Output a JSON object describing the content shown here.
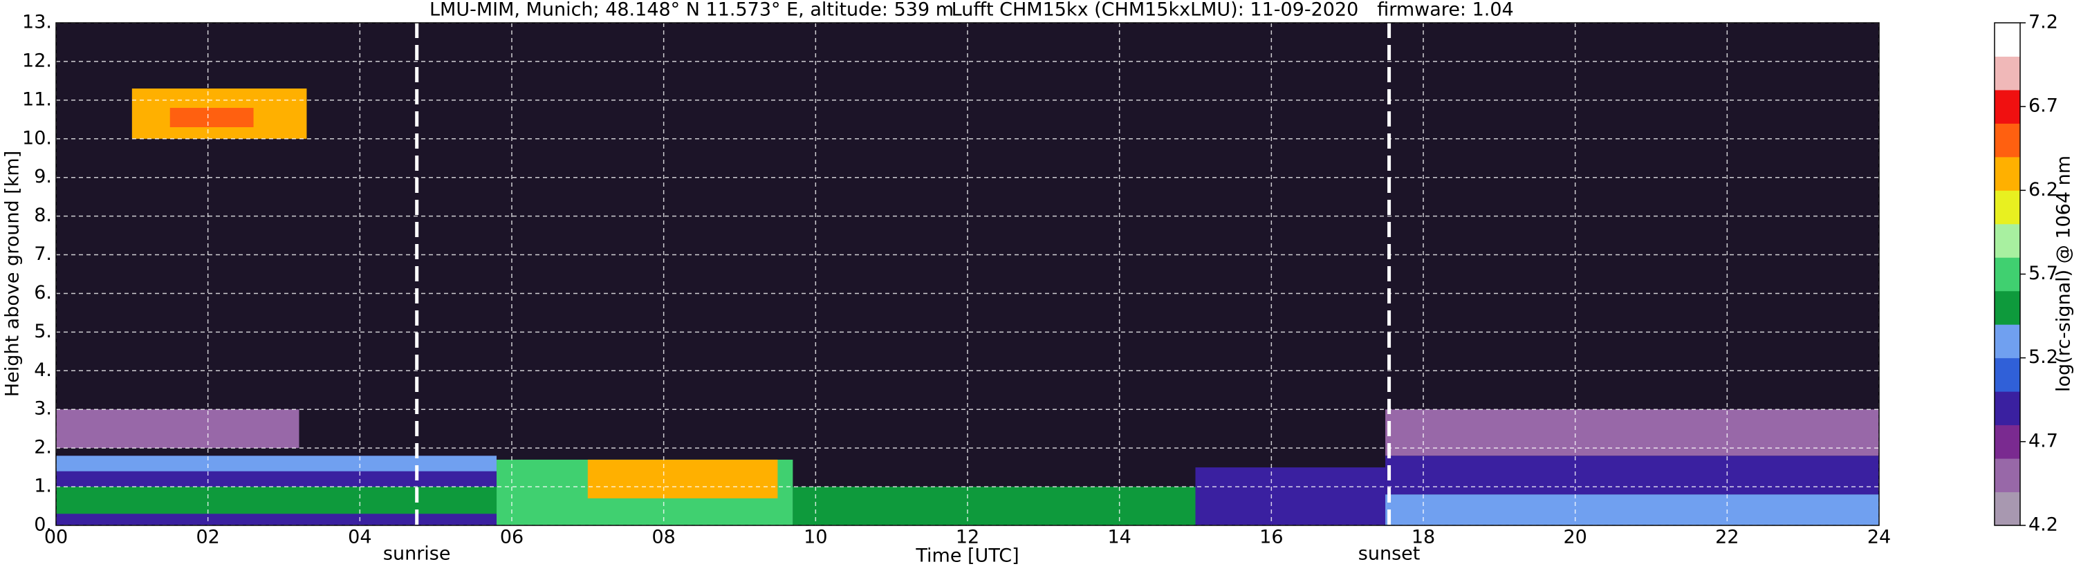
{
  "chart_data": {
    "type": "heatmap",
    "title": [
      "LMU-MIM, Munich; 48.148° N 11.573° E, altitude: 539 m",
      "Lufft CHM15kx (CHM15kxLMU): 11-09-2020",
      "firmware: 1.04"
    ],
    "x_label": "Time [UTC]",
    "y_label": "Height above ground [km]",
    "xlim": [
      0,
      24
    ],
    "xticks": [
      {
        "value": 0,
        "label": "00"
      },
      {
        "value": 2,
        "label": "02"
      },
      {
        "value": 4,
        "label": "04"
      },
      {
        "value": 6,
        "label": "06"
      },
      {
        "value": 8,
        "label": "08"
      },
      10,
      12,
      14,
      16,
      18,
      20,
      22,
      24
    ],
    "ylim": [
      0,
      13
    ],
    "yticks": [
      {
        "value": 0,
        "label": "0."
      },
      {
        "value": 1,
        "label": "1."
      },
      {
        "value": 2,
        "label": "2."
      },
      {
        "value": 3,
        "label": "3."
      },
      {
        "value": 4,
        "label": "4."
      },
      {
        "value": 5,
        "label": "5."
      },
      {
        "value": 6,
        "label": "6."
      },
      {
        "value": 7,
        "label": "7."
      },
      {
        "value": 8,
        "label": "8."
      },
      {
        "value": 9,
        "label": "9."
      },
      {
        "value": 10,
        "label": "10."
      },
      {
        "value": 11,
        "label": "11."
      },
      {
        "value": 12,
        "label": "12."
      },
      {
        "value": 13,
        "label": "13."
      }
    ],
    "grid": true,
    "background": "#1c1428",
    "regions": [
      {
        "x": [
          0,
          3.2
        ],
        "y": [
          2.0,
          3.0
        ],
        "value": 4.4
      },
      {
        "x": [
          17.5,
          24
        ],
        "y": [
          1.8,
          3.0
        ],
        "value": 4.4
      },
      {
        "x": [
          0,
          5.8
        ],
        "y": [
          0,
          1.8
        ],
        "value": 5.0
      },
      {
        "x": [
          0,
          5.8
        ],
        "y": [
          1.4,
          1.8
        ],
        "value": 5.3
      },
      {
        "x": [
          0,
          5.8
        ],
        "y": [
          0.3,
          1.0
        ],
        "value": 5.4
      },
      {
        "x": [
          5.8,
          9.7
        ],
        "y": [
          0,
          1.7
        ],
        "value": 5.8
      },
      {
        "x": [
          7.0,
          9.5
        ],
        "y": [
          0.7,
          1.7
        ],
        "value": 6.2
      },
      {
        "x": [
          9.7,
          17.5
        ],
        "y": [
          0,
          1.0
        ],
        "value": 5.4
      },
      {
        "x": [
          15.0,
          17.5
        ],
        "y": [
          0,
          1.5
        ],
        "value": 5.0
      },
      {
        "x": [
          17.5,
          24
        ],
        "y": [
          0.8,
          1.8
        ],
        "value": 5.0
      },
      {
        "x": [
          17.5,
          24
        ],
        "y": [
          0,
          0.8
        ],
        "value": 5.3
      },
      {
        "x": [
          1.0,
          3.3
        ],
        "y": [
          10.0,
          11.3
        ],
        "value": 6.2
      },
      {
        "x": [
          1.5,
          2.6
        ],
        "y": [
          10.3,
          10.8
        ],
        "value": 6.6
      }
    ],
    "annotations": [
      {
        "text": "sunrise",
        "x": 4.75
      },
      {
        "text": "sunset",
        "x": 17.55
      }
    ],
    "colorbar": {
      "label": "log(rc-signal) @ 1064 nm",
      "lim": [
        4.2,
        7.2
      ],
      "ticks": [
        4.2,
        4.7,
        5.2,
        5.7,
        6.2,
        6.7,
        7.2
      ],
      "colors": [
        "#a898b0",
        "#9868a8",
        "#7a2a90",
        "#3a20a0",
        "#3060d8",
        "#70a0f0",
        "#0e9a3c",
        "#40d070",
        "#a8f0a0",
        "#e8f020",
        "#ffb000",
        "#ff6010",
        "#f01010",
        "#f0b8b8",
        "#ffffff"
      ]
    }
  }
}
